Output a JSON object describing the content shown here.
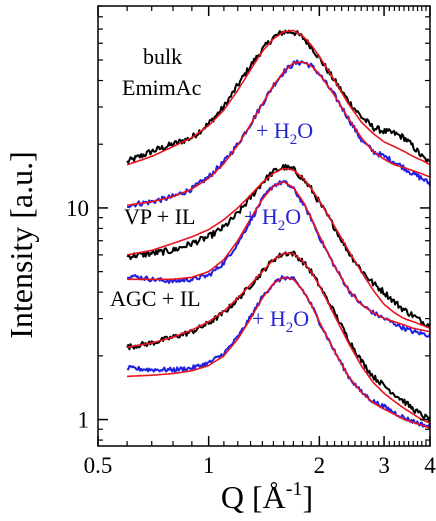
{
  "chart_data": {
    "type": "line",
    "title": "",
    "xlabel": "Q [Å",
    "xlabel_sup": "-1",
    "xlabel_close": "]",
    "ylabel": "Intensity [a.u.]",
    "x_scale": "log",
    "y_scale": "log",
    "xlim": [
      0.5,
      4
    ],
    "ylim": [
      0.75,
      90
    ],
    "x_ticks": [
      {
        "value": 0.5,
        "label": "0.5"
      },
      {
        "value": 1,
        "label": "1"
      },
      {
        "value": 2,
        "label": "2"
      },
      {
        "value": 3,
        "label": "3"
      },
      {
        "value": 4,
        "label": "4"
      }
    ],
    "y_ticks": [
      {
        "value": 1,
        "label": "1"
      },
      {
        "value": 10,
        "label": "10"
      }
    ],
    "grid": false,
    "colors": {
      "data_black": "#000000",
      "data_blue": "#1f1fe6",
      "fit": "#e8141e",
      "text_blue": "#2424d6"
    },
    "annotations": {
      "bulk_line1": "bulk",
      "bulk_line2": "EmimAc",
      "vp": "VP + IL",
      "agc": "AGC + IL",
      "water_prefix": "+ H",
      "water_sub": "2",
      "water_suffix": "O"
    },
    "series": [
      {
        "group": "bulk",
        "kind": "measured",
        "color": "black",
        "noise": 0.035,
        "x": [
          0.6,
          0.7,
          0.8,
          0.9,
          1.0,
          1.1,
          1.2,
          1.3,
          1.4,
          1.5,
          1.6,
          1.7,
          1.8,
          1.9,
          2.0,
          2.2,
          2.4,
          2.6,
          2.8,
          3.0,
          3.2,
          3.4,
          3.6,
          3.8,
          4.0
        ],
        "y": [
          16.5,
          18.5,
          20,
          21.5,
          25,
          30,
          38,
          47,
          56,
          64,
          68,
          68,
          64,
          58,
          51,
          40,
          32,
          27,
          24,
          23,
          22.5,
          21.5,
          19.5,
          17.5,
          16.2
        ]
      },
      {
        "group": "bulk",
        "kind": "fit",
        "color": "red",
        "x": [
          0.6,
          0.7,
          0.8,
          0.9,
          1.0,
          1.1,
          1.2,
          1.3,
          1.4,
          1.5,
          1.6,
          1.7,
          1.8,
          1.9,
          2.0,
          2.2,
          2.4,
          2.6,
          2.8,
          3.0,
          3.2,
          3.4,
          3.6,
          3.8,
          4.0
        ],
        "y": [
          16,
          17.5,
          19.5,
          21.5,
          24.5,
          29,
          36,
          45,
          55,
          63,
          68,
          69,
          65,
          59,
          52,
          40,
          31,
          25.5,
          22.5,
          20.5,
          19.5,
          18.5,
          17.5,
          16.8,
          16
        ]
      },
      {
        "group": "bulk_h2o",
        "kind": "measured",
        "color": "blue",
        "noise": 0.03,
        "x": [
          0.6,
          0.7,
          0.8,
          0.9,
          1.0,
          1.1,
          1.2,
          1.3,
          1.4,
          1.5,
          1.6,
          1.7,
          1.8,
          1.9,
          2.0,
          2.2,
          2.4,
          2.6,
          2.8,
          3.0,
          3.2,
          3.4,
          3.6,
          3.8,
          4.0
        ],
        "y": [
          10.3,
          10.7,
          11.3,
          12.3,
          14,
          16.5,
          20,
          25,
          31,
          38,
          44,
          48,
          49,
          47,
          43,
          34,
          26.5,
          21,
          18.5,
          17.5,
          16.5,
          15.5,
          14.5,
          13.8,
          13
        ]
      },
      {
        "group": "bulk_h2o",
        "kind": "fit",
        "color": "red",
        "x": [
          0.6,
          0.7,
          0.8,
          0.9,
          1.0,
          1.1,
          1.2,
          1.3,
          1.4,
          1.5,
          1.6,
          1.7,
          1.8,
          1.9,
          2.0,
          2.2,
          2.4,
          2.6,
          2.8,
          3.0,
          3.2,
          3.4,
          3.6,
          3.8,
          4.0
        ],
        "y": [
          10.3,
          10.7,
          11.3,
          12.3,
          13.8,
          16.2,
          19.8,
          24.8,
          31,
          38,
          44,
          48.5,
          49,
          47,
          43,
          34,
          26.5,
          21.5,
          18.5,
          17,
          16,
          15.5,
          15,
          14.5,
          14
        ]
      },
      {
        "group": "vp",
        "kind": "measured",
        "color": "black",
        "noise": 0.035,
        "x": [
          0.6,
          0.7,
          0.8,
          0.9,
          1.0,
          1.1,
          1.2,
          1.3,
          1.4,
          1.5,
          1.6,
          1.7,
          1.8,
          1.9,
          2.0,
          2.2,
          2.4,
          2.6,
          2.8,
          3.0,
          3.2,
          3.4,
          3.6,
          3.8,
          4.0
        ],
        "y": [
          5.9,
          6.1,
          6.3,
          6.8,
          7.3,
          8.1,
          9.4,
          11.2,
          13.2,
          14.8,
          15.6,
          15.2,
          13.8,
          12.3,
          10.6,
          8.1,
          6.2,
          5.1,
          4.4,
          4.0,
          3.6,
          3.3,
          3.1,
          2.9,
          2.8
        ]
      },
      {
        "group": "vp",
        "kind": "fit",
        "color": "red",
        "x": [
          0.6,
          0.7,
          0.8,
          0.9,
          1.0,
          1.1,
          1.2,
          1.3,
          1.4,
          1.5,
          1.6,
          1.7,
          1.8,
          1.9,
          2.0,
          2.2,
          2.4,
          2.6,
          2.8,
          3.0,
          3.2,
          3.4,
          3.6,
          3.8,
          4.0
        ],
        "y": [
          6.0,
          6.3,
          6.8,
          7.3,
          7.9,
          8.8,
          10.0,
          11.5,
          13.2,
          14.6,
          15.4,
          15.1,
          13.9,
          12.4,
          10.8,
          8.2,
          6.3,
          5.0,
          4.1,
          3.5,
          3.2,
          3.0,
          2.9,
          2.8,
          2.7
        ]
      },
      {
        "group": "vp_h2o",
        "kind": "measured",
        "color": "blue",
        "noise": 0.025,
        "x": [
          0.6,
          0.7,
          0.8,
          0.9,
          1.0,
          1.1,
          1.2,
          1.3,
          1.4,
          1.5,
          1.6,
          1.7,
          1.8,
          1.9,
          2.0,
          2.2,
          2.4,
          2.6,
          2.8,
          3.0,
          3.2,
          3.4,
          3.6,
          3.8,
          4.0
        ],
        "y": [
          4.8,
          4.6,
          4.5,
          4.6,
          4.8,
          5.5,
          6.8,
          8.7,
          11.0,
          12.8,
          13.3,
          12.3,
          10.6,
          8.9,
          7.3,
          5.3,
          4.1,
          3.5,
          3.2,
          3.0,
          2.85,
          2.7,
          2.6,
          2.55,
          2.5
        ]
      },
      {
        "group": "vp_h2o",
        "kind": "fit",
        "color": "red",
        "x": [
          0.6,
          0.7,
          0.8,
          0.9,
          1.0,
          1.1,
          1.2,
          1.3,
          1.4,
          1.5,
          1.6,
          1.7,
          1.8,
          1.9,
          2.0,
          2.2,
          2.4,
          2.6,
          2.8,
          3.0,
          3.2,
          3.4,
          3.6,
          3.8,
          4.0
        ],
        "y": [
          4.6,
          4.6,
          4.6,
          4.7,
          5.0,
          5.7,
          7.0,
          8.9,
          11.0,
          12.7,
          13.3,
          12.5,
          10.8,
          9.0,
          7.4,
          5.3,
          4.1,
          3.5,
          3.2,
          3.0,
          2.9,
          2.8,
          2.7,
          2.65,
          2.6
        ]
      },
      {
        "group": "agc",
        "kind": "measured",
        "color": "black",
        "noise": 0.03,
        "x": [
          0.6,
          0.7,
          0.8,
          0.9,
          1.0,
          1.1,
          1.2,
          1.3,
          1.4,
          1.5,
          1.6,
          1.7,
          1.8,
          1.9,
          2.0,
          2.2,
          2.4,
          2.6,
          2.8,
          3.0,
          3.2,
          3.4,
          3.6,
          3.8,
          4.0
        ],
        "y": [
          2.2,
          2.3,
          2.45,
          2.6,
          2.85,
          3.2,
          3.7,
          4.3,
          5.0,
          5.7,
          6.1,
          6.1,
          5.6,
          5.0,
          4.3,
          3.2,
          2.4,
          1.9,
          1.6,
          1.45,
          1.32,
          1.22,
          1.12,
          1.05,
          1.0
        ]
      },
      {
        "group": "agc",
        "kind": "fit",
        "color": "red",
        "x": [
          0.6,
          0.7,
          0.8,
          0.9,
          1.0,
          1.1,
          1.2,
          1.3,
          1.4,
          1.5,
          1.6,
          1.7,
          1.8,
          1.9,
          2.0,
          2.2,
          2.4,
          2.6,
          2.8,
          3.0,
          3.2,
          3.4,
          3.6,
          3.8,
          4.0
        ],
        "y": [
          2.2,
          2.3,
          2.45,
          2.65,
          2.9,
          3.25,
          3.75,
          4.35,
          5.0,
          5.7,
          6.1,
          6.1,
          5.6,
          5.0,
          4.3,
          3.1,
          2.3,
          1.8,
          1.5,
          1.33,
          1.22,
          1.13,
          1.06,
          1.0,
          0.96
        ]
      },
      {
        "group": "agc_h2o",
        "kind": "measured",
        "color": "blue",
        "noise": 0.025,
        "x": [
          0.6,
          0.7,
          0.8,
          0.9,
          1.0,
          1.1,
          1.2,
          1.3,
          1.4,
          1.5,
          1.6,
          1.7,
          1.8,
          1.9,
          2.0,
          2.2,
          2.4,
          2.6,
          2.8,
          3.0,
          3.2,
          3.4,
          3.6,
          3.8,
          4.0
        ],
        "y": [
          1.75,
          1.72,
          1.72,
          1.75,
          1.85,
          2.05,
          2.45,
          3.05,
          3.8,
          4.4,
          4.7,
          4.6,
          4.1,
          3.5,
          2.9,
          2.1,
          1.6,
          1.35,
          1.22,
          1.15,
          1.08,
          1.02,
          0.98,
          0.95,
          0.92
        ]
      },
      {
        "group": "agc_h2o",
        "kind": "fit",
        "color": "red",
        "x": [
          0.6,
          0.7,
          0.8,
          0.9,
          1.0,
          1.1,
          1.2,
          1.3,
          1.4,
          1.5,
          1.6,
          1.7,
          1.8,
          1.9,
          2.0,
          2.2,
          2.4,
          2.6,
          2.8,
          3.0,
          3.2,
          3.4,
          3.6,
          3.8,
          4.0
        ],
        "y": [
          1.6,
          1.62,
          1.65,
          1.7,
          1.8,
          2.0,
          2.4,
          3.0,
          3.75,
          4.4,
          4.7,
          4.6,
          4.1,
          3.5,
          2.9,
          2.1,
          1.6,
          1.35,
          1.2,
          1.12,
          1.06,
          1.0,
          0.97,
          0.94,
          0.91
        ]
      }
    ]
  }
}
